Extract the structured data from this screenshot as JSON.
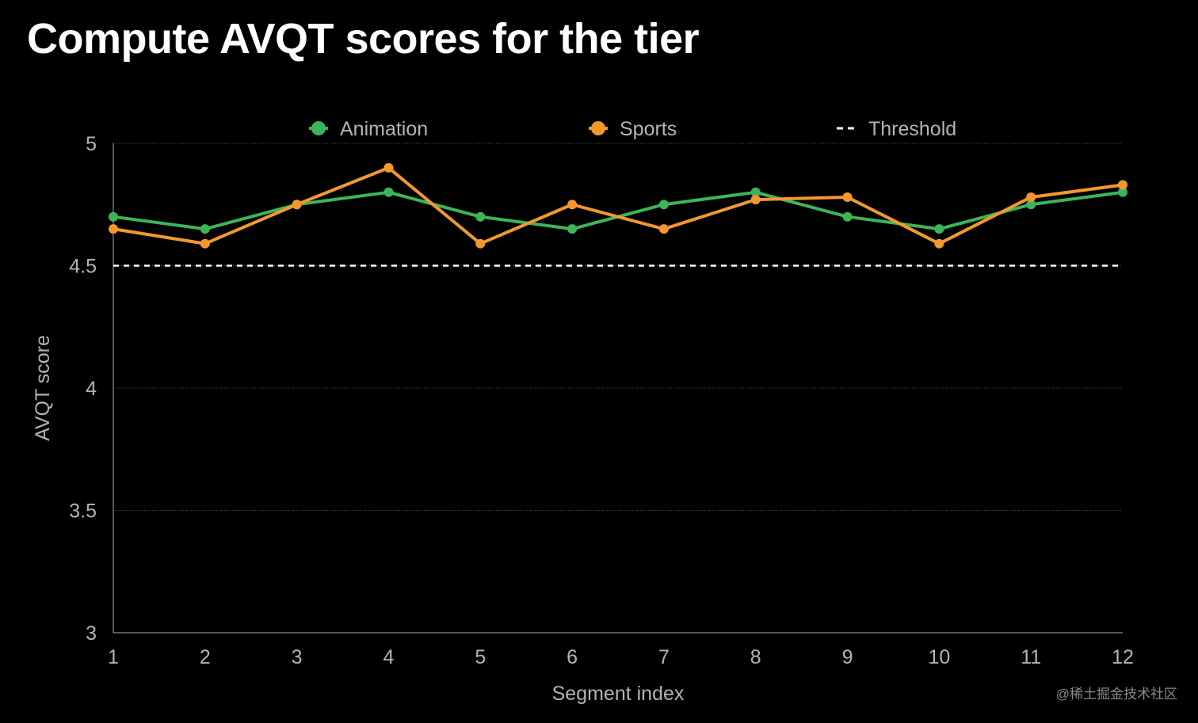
{
  "title": "Compute AVQT scores for the tier",
  "watermark": "@稀土掘金技术社区",
  "chart_data": {
    "type": "line",
    "title": "Compute AVQT scores for the tier",
    "xlabel": "Segment index",
    "ylabel": "AVQT score",
    "categories": [
      1,
      2,
      3,
      4,
      5,
      6,
      7,
      8,
      9,
      10,
      11,
      12
    ],
    "xtick_labels": [
      "1",
      "2",
      "3",
      "4",
      "5",
      "6",
      "7",
      "8",
      "9",
      "10",
      "11",
      "12"
    ],
    "ylim": [
      3,
      5
    ],
    "yticks": [
      3,
      3.5,
      4,
      4.5,
      5
    ],
    "ytick_labels": [
      "3",
      "3.5",
      "4",
      "4.5",
      "5"
    ],
    "grid": true,
    "legend_position": "top",
    "series": [
      {
        "name": "Animation",
        "color": "#3cb55a",
        "values": [
          4.7,
          4.65,
          4.75,
          4.8,
          4.7,
          4.65,
          4.75,
          4.8,
          4.7,
          4.65,
          4.75,
          4.8
        ]
      },
      {
        "name": "Sports",
        "color": "#f3982d",
        "values": [
          4.65,
          4.59,
          4.75,
          4.9,
          4.59,
          4.75,
          4.65,
          4.77,
          4.78,
          4.59,
          4.78,
          4.83
        ]
      }
    ],
    "threshold": {
      "name": "Threshold",
      "value": 4.5,
      "color": "#ffffff"
    }
  }
}
